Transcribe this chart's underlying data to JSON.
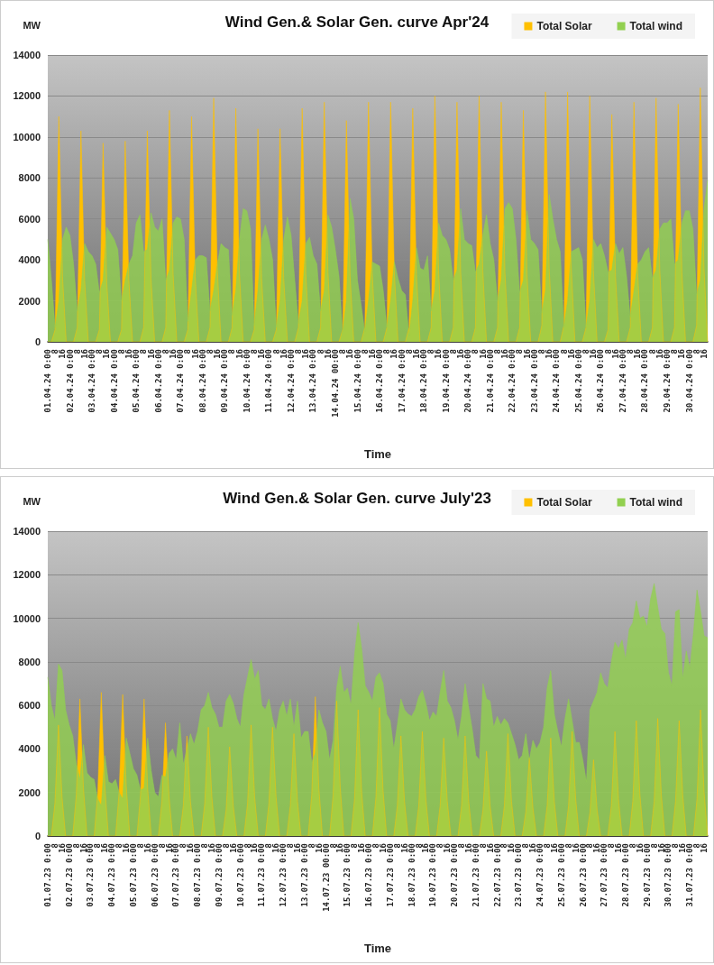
{
  "chart_data": [
    {
      "type": "area",
      "title": "Wind Gen.& Solar Gen. curve Apr'24",
      "xlabel": "Time",
      "ylabel": "MW",
      "ylim": [
        0,
        14000
      ],
      "yticks": [
        0,
        2000,
        4000,
        6000,
        8000,
        10000,
        12000,
        14000
      ],
      "grid": "y",
      "legend": "top right",
      "marker": "none",
      "line_style": "solid",
      "categories": [
        "01.04.24 0:00",
        null,
        "8",
        null,
        "16",
        null,
        "02.04.24 0:00",
        null,
        "8",
        null,
        "16",
        null,
        "03.04.24 0:00",
        null,
        "8",
        null,
        "16",
        null,
        "04.04.24 0:00",
        null,
        "8",
        null,
        "16",
        null,
        "05.04.24 0:00",
        null,
        "8",
        null,
        "16",
        null,
        "06.04.24 0:00",
        null,
        "8",
        null,
        "16",
        null,
        "07.04.24 0:00",
        null,
        "8",
        null,
        "16",
        null,
        "08.04.24 0:00",
        null,
        "8",
        null,
        "16",
        null,
        "09.04.24 0:00",
        null,
        "8",
        null,
        "16",
        null,
        "10.04.24 0:00",
        null,
        "8",
        null,
        "16",
        null,
        "11.04.24 0:00",
        null,
        "8",
        null,
        "16",
        null,
        "12.04.24 0:00",
        null,
        "8",
        null,
        "16",
        null,
        "13.04.24 0:00",
        null,
        "8",
        null,
        "16",
        null,
        "14.04.24 00:00",
        null,
        "8",
        null,
        "16",
        null,
        "15.04.24 0:00",
        null,
        "8",
        null,
        "16",
        null,
        "16.04.24 0:00",
        null,
        "8",
        null,
        "16",
        null,
        "17.04.24 0:00",
        null,
        "8",
        null,
        "16",
        null,
        "18.04.24 0:00",
        null,
        "8",
        null,
        "16",
        null,
        "19.04.24 0:00",
        null,
        "8",
        null,
        "16",
        null,
        "20.04.24 0:00",
        null,
        "8",
        null,
        "16",
        null,
        "21.04.24 0:00",
        null,
        "8",
        null,
        "16",
        null,
        "22.04.24 0:00",
        null,
        "8",
        null,
        "16",
        null,
        "23.04.24 0:00",
        null,
        "8",
        null,
        "16",
        null,
        "24.04.24 0:00",
        null,
        "8",
        null,
        "16",
        null,
        "25.04.24 0:00",
        null,
        "8",
        null,
        "16",
        null,
        "26.04.24 0:00",
        null,
        "8",
        null,
        "16",
        null,
        "27.04.24 0:00",
        null,
        "8",
        null,
        "16",
        null,
        "28.04.24 0:00",
        null,
        "8",
        null,
        "16",
        null,
        "29.04.24 0:00",
        null,
        "8",
        null,
        "16",
        null,
        "30.04.24 0:00",
        null,
        "8",
        null,
        "16",
        null
      ],
      "series": [
        {
          "name": "Total Solar",
          "color": "#ffc000",
          "values": [
            0,
            0,
            600,
            11000,
            3200,
            0,
            0,
            0,
            700,
            10300,
            3000,
            0,
            0,
            0,
            600,
            9700,
            2900,
            0,
            0,
            0,
            600,
            9800,
            3000,
            0,
            0,
            0,
            700,
            10300,
            3100,
            0,
            0,
            0,
            700,
            11300,
            3300,
            0,
            0,
            0,
            600,
            11000,
            3200,
            0,
            0,
            0,
            700,
            11900,
            3500,
            0,
            0,
            0,
            700,
            11400,
            3300,
            0,
            0,
            0,
            600,
            10400,
            3100,
            0,
            0,
            0,
            600,
            10400,
            3100,
            0,
            0,
            0,
            700,
            11400,
            3300,
            0,
            0,
            0,
            700,
            11700,
            3400,
            0,
            0,
            0,
            600,
            10800,
            3200,
            0,
            0,
            0,
            700,
            11700,
            3400,
            0,
            0,
            0,
            700,
            11700,
            3400,
            0,
            0,
            0,
            700,
            11400,
            3300,
            0,
            0,
            0,
            700,
            12000,
            3500,
            0,
            0,
            0,
            700,
            11700,
            3400,
            0,
            0,
            0,
            700,
            12000,
            3500,
            0,
            0,
            0,
            700,
            11700,
            3400,
            0,
            0,
            0,
            700,
            11300,
            3300,
            0,
            0,
            0,
            800,
            12200,
            3600,
            0,
            0,
            0,
            800,
            12200,
            3600,
            0,
            0,
            0,
            700,
            12000,
            3500,
            0,
            0,
            0,
            600,
            11100,
            3200,
            0,
            0,
            0,
            700,
            11700,
            3400,
            0,
            0,
            0,
            700,
            11900,
            3500,
            0,
            0,
            0,
            700,
            11600,
            3400,
            0,
            0,
            0,
            800,
            12400,
            3600,
            0
          ]
        },
        {
          "name": "Total wind",
          "color": "#92d050",
          "values": [
            5000,
            3000,
            700,
            2000,
            5000,
            5600,
            5200,
            3800,
            1500,
            2500,
            4800,
            4400,
            4200,
            3800,
            2400,
            3000,
            5600,
            5300,
            5000,
            4500,
            2000,
            3000,
            3800,
            4200,
            5800,
            6200,
            4400,
            4500,
            6300,
            5600,
            5400,
            6000,
            3000,
            3500,
            5800,
            6100,
            6000,
            5000,
            1000,
            2500,
            4000,
            4200,
            4200,
            4100,
            1500,
            2500,
            3800,
            4800,
            4600,
            4500,
            1300,
            2500,
            5000,
            6500,
            6400,
            5500,
            800,
            2500,
            5000,
            5700,
            5000,
            4000,
            700,
            2000,
            5000,
            6100,
            5200,
            3000,
            900,
            2000,
            4800,
            5100,
            4200,
            3800,
            1500,
            2500,
            6200,
            5600,
            4500,
            3200,
            400,
            2000,
            7000,
            6000,
            3000,
            1800,
            500,
            2000,
            3900,
            3800,
            3700,
            2500,
            700,
            2000,
            3900,
            3100,
            2500,
            2300,
            300,
            2000,
            4600,
            3600,
            3500,
            4200,
            1500,
            2500,
            5800,
            5200,
            5000,
            4500,
            3000,
            3500,
            6500,
            5000,
            4800,
            4700,
            3400,
            3800,
            5200,
            6200,
            4800,
            4000,
            2000,
            3000,
            6500,
            6800,
            6500,
            5000,
            2400,
            3000,
            6400,
            5000,
            4800,
            4500,
            1400,
            2500,
            7200,
            6000,
            5000,
            4400,
            700,
            2000,
            4400,
            4500,
            4600,
            4000,
            700,
            2000,
            5000,
            4600,
            4800,
            4200,
            3400,
            3500,
            4800,
            4300,
            4600,
            3200,
            1200,
            2500,
            3800,
            4000,
            4400,
            4600,
            3100,
            3500,
            5500,
            5800,
            5800,
            6000,
            3800,
            4000,
            5800,
            6400,
            6400,
            5500,
            2300,
            3000,
            6500,
            7900
          ]
        }
      ]
    },
    {
      "type": "area",
      "title": "Wind Gen.& Solar Gen. curve July'23",
      "xlabel": "Time",
      "ylabel": "MW",
      "ylim": [
        0,
        14000
      ],
      "yticks": [
        0,
        2000,
        4000,
        6000,
        8000,
        10000,
        12000,
        14000
      ],
      "grid": "y",
      "legend": "top right",
      "marker": "none",
      "line_style": "solid",
      "categories": [
        "01.07.23 0:00",
        null,
        "8",
        null,
        "16",
        null,
        "02.07.23 0:00",
        null,
        "8",
        null,
        "16",
        null,
        "03.07.23 0:00",
        null,
        "8",
        null,
        "16",
        null,
        "04.07.23 0:00",
        null,
        "8",
        null,
        "16",
        null,
        "05.07.23 0:00",
        null,
        "8",
        null,
        "16",
        null,
        "06.07.23 0:00",
        null,
        "8",
        null,
        "16",
        null,
        "07.07.23 0:00",
        null,
        "8",
        null,
        "16",
        null,
        "08.07.23 0:00",
        null,
        "8",
        null,
        "16",
        null,
        "09.07.23 0:00",
        null,
        "8",
        null,
        "16",
        null,
        "10.07.23 0:00",
        null,
        "8",
        null,
        "16",
        null,
        "11.07.23 0:00",
        null,
        "8",
        null,
        "16",
        null,
        "12.07.23 0:00",
        null,
        "8",
        null,
        "16",
        null,
        "13.07.23 0:00",
        null,
        "8",
        null,
        "16",
        null,
        "14.07.23 00:00",
        null,
        "8",
        null,
        "16",
        null,
        "15.07.23 0:00",
        null,
        "8",
        null,
        "16",
        null,
        "16.07.23 0:00",
        null,
        "8",
        null,
        "16",
        null,
        "17.07.23 0:00",
        null,
        "8",
        null,
        "16",
        null,
        "18.07.23 0:00",
        null,
        "8",
        null,
        "16",
        null,
        "19.07.23 0:00",
        null,
        "8",
        null,
        "16",
        null,
        "20.07.23 0:00",
        null,
        "8",
        null,
        "16",
        null,
        "21.07.23 0:00",
        null,
        "8",
        null,
        "16",
        null,
        "22.07.23 0:00",
        null,
        "8",
        null,
        "16",
        null,
        "23.07.23 0:00",
        null,
        "8",
        null,
        "16",
        null,
        "24.07.23 0:00",
        null,
        "8",
        null,
        "16",
        null,
        "25.07.23 0:00",
        null,
        "8",
        null,
        "16",
        null,
        "26.07.23 0:00",
        null,
        "8",
        null,
        "16",
        null,
        "27.07.23 0:00",
        null,
        "8",
        null,
        "16",
        null,
        "28.07.23 0:00",
        null,
        "8",
        null,
        "16",
        null,
        "29.07.23 0:00",
        null,
        "8",
        null,
        "16",
        null,
        "30.07.23 0:00",
        null,
        "8",
        null,
        "16",
        null,
        "31.07.23 0:00",
        null,
        "8",
        null,
        "16",
        null
      ],
      "series": [
        {
          "name": "Total Solar",
          "color": "#ffc000",
          "values": [
            0,
            0,
            1500,
            5100,
            1800,
            0,
            0,
            0,
            1900,
            6300,
            2200,
            0,
            0,
            0,
            2000,
            6600,
            2300,
            0,
            0,
            0,
            2000,
            6500,
            2300,
            0,
            0,
            0,
            1900,
            6300,
            2200,
            0,
            0,
            0,
            1600,
            5200,
            1800,
            0,
            0,
            0,
            1400,
            4600,
            1600,
            0,
            0,
            0,
            1500,
            5000,
            1800,
            0,
            0,
            0,
            1200,
            4100,
            1400,
            0,
            0,
            0,
            1500,
            5100,
            1800,
            0,
            0,
            0,
            1500,
            5000,
            1800,
            0,
            0,
            0,
            1400,
            4700,
            1600,
            0,
            0,
            0,
            1900,
            6400,
            2200,
            0,
            0,
            0,
            1900,
            6200,
            2200,
            0,
            0,
            0,
            1700,
            5800,
            2000,
            0,
            0,
            0,
            1800,
            5900,
            2100,
            0,
            0,
            0,
            1400,
            4600,
            1600,
            0,
            0,
            0,
            1400,
            4800,
            1700,
            0,
            0,
            0,
            1400,
            4500,
            1600,
            0,
            0,
            0,
            1400,
            4600,
            1600,
            0,
            0,
            0,
            1200,
            3900,
            1400,
            0,
            0,
            0,
            1400,
            4700,
            1600,
            0,
            0,
            0,
            1100,
            3600,
            1300,
            0,
            0,
            0,
            1400,
            4500,
            1600,
            0,
            0,
            0,
            1400,
            4800,
            1700,
            0,
            0,
            0,
            1100,
            3500,
            1200,
            0,
            0,
            0,
            1400,
            4800,
            1700,
            0,
            0,
            0,
            1600,
            5300,
            1900,
            0,
            0,
            0,
            1600,
            5400,
            1900,
            0,
            0,
            0,
            1600,
            5300,
            1900,
            0,
            0,
            0,
            1700,
            5800,
            2000,
            0
          ]
        },
        {
          "name": "Total wind",
          "color": "#92d050",
          "values": [
            7300,
            6000,
            5300,
            7900,
            7600,
            5800,
            5100,
            4600,
            3300,
            2600,
            4200,
            2900,
            2700,
            2600,
            1700,
            1400,
            3700,
            2500,
            2400,
            2600,
            2000,
            1700,
            4500,
            3800,
            3100,
            2800,
            2100,
            2200,
            4500,
            3000,
            2000,
            1800,
            2800,
            2700,
            3800,
            4000,
            3500,
            5200,
            3300,
            4000,
            4700,
            4200,
            4800,
            5800,
            6000,
            6600,
            5900,
            5600,
            5000,
            5000,
            6200,
            6500,
            6100,
            5400,
            5000,
            6500,
            7300,
            8100,
            7200,
            7600,
            6000,
            5800,
            6300,
            5400,
            4800,
            5800,
            6200,
            5500,
            6300,
            5000,
            6200,
            4500,
            4800,
            4800,
            3400,
            3800,
            5800,
            5200,
            4800,
            3500,
            4400,
            6800,
            7800,
            6600,
            6800,
            6000,
            8300,
            9800,
            8600,
            6900,
            6600,
            6200,
            7300,
            7500,
            7000,
            5600,
            5300,
            4000,
            5100,
            6300,
            5800,
            5600,
            5500,
            5800,
            6400,
            6700,
            6100,
            5300,
            5700,
            5500,
            6600,
            7600,
            6200,
            5900,
            5300,
            4400,
            5500,
            7000,
            5900,
            4900,
            3700,
            3500,
            7000,
            6300,
            6200,
            5000,
            5500,
            5100,
            5400,
            5200,
            4700,
            4200,
            3500,
            3700,
            4700,
            3500,
            4400,
            4000,
            4300,
            5000,
            6800,
            7600,
            5600,
            4800,
            4100,
            5400,
            6300,
            5300,
            4300,
            4300,
            3500,
            2500,
            5800,
            6200,
            6600,
            7500,
            7000,
            6800,
            8000,
            8900,
            8600,
            9000,
            8100,
            9500,
            9800,
            10800,
            10000,
            10100,
            9600,
            10900,
            11600,
            10500,
            9500,
            9300,
            7500,
            6900,
            10300,
            10400,
            7200,
            8500,
            7700,
            9300,
            11300,
            10300,
            9200,
            9100
          ]
        }
      ]
    }
  ]
}
